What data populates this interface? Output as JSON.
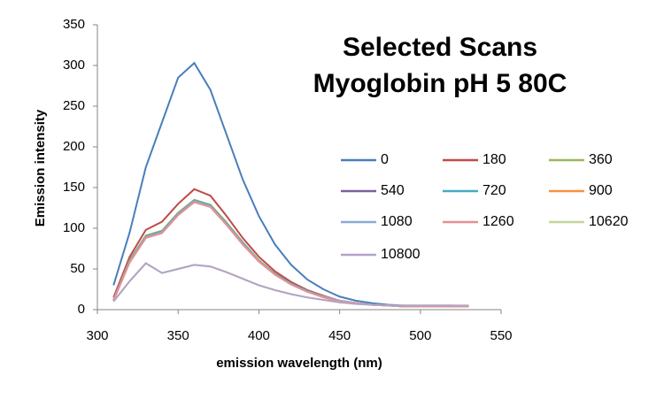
{
  "chart_data": {
    "type": "line",
    "title": [
      "Selected Scans",
      "Myoglobin pH 5 80C"
    ],
    "x_label": "emission wavelength (nm)",
    "y_label": "Emission intensity",
    "x": [
      310,
      320,
      330,
      340,
      350,
      360,
      370,
      380,
      390,
      400,
      410,
      420,
      430,
      440,
      450,
      460,
      470,
      480,
      490,
      500,
      510,
      520,
      530
    ],
    "xlim": [
      300,
      550
    ],
    "xticks": [
      300,
      350,
      400,
      450,
      500,
      550
    ],
    "ylim": [
      0,
      350
    ],
    "yticks": [
      0,
      50,
      100,
      150,
      200,
      250,
      300,
      350
    ],
    "grid": false,
    "series": [
      {
        "name": "0",
        "color": "#4a7ebb",
        "values": [
          30,
          95,
          175,
          230,
          285,
          303,
          270,
          215,
          160,
          115,
          80,
          55,
          37,
          25,
          16,
          11,
          8,
          6,
          5,
          5,
          5,
          5,
          4
        ]
      },
      {
        "name": "180",
        "color": "#be4b48",
        "values": [
          15,
          65,
          98,
          108,
          130,
          148,
          140,
          115,
          88,
          65,
          47,
          34,
          24,
          17,
          11,
          8,
          6,
          5,
          4,
          4,
          4,
          4,
          4
        ]
      },
      {
        "name": "360",
        "color": "#98b954",
        "values": [
          12,
          61,
          91,
          97,
          119,
          135,
          129,
          107,
          83,
          61,
          44,
          32,
          23,
          16,
          11,
          8,
          6,
          5,
          4,
          4,
          4,
          4,
          4
        ]
      },
      {
        "name": "540",
        "color": "#7d60a0",
        "values": [
          12,
          60,
          90,
          96,
          118,
          134,
          128,
          106,
          82,
          60,
          44,
          32,
          23,
          16,
          11,
          8,
          6,
          5,
          4,
          4,
          4,
          4,
          4
        ]
      },
      {
        "name": "720",
        "color": "#46aac5",
        "values": [
          12,
          60,
          90,
          96,
          118,
          134,
          128,
          106,
          82,
          60,
          44,
          32,
          23,
          16,
          11,
          8,
          6,
          5,
          4,
          4,
          4,
          4,
          4
        ]
      },
      {
        "name": "900",
        "color": "#f69240",
        "values": [
          12,
          59,
          89,
          95,
          117,
          133,
          127,
          105,
          81,
          60,
          43,
          31,
          22,
          16,
          11,
          8,
          6,
          5,
          4,
          4,
          4,
          4,
          4
        ]
      },
      {
        "name": "1080",
        "color": "#8ea9d6",
        "values": [
          12,
          59,
          89,
          95,
          117,
          133,
          127,
          105,
          81,
          60,
          43,
          31,
          22,
          16,
          11,
          8,
          6,
          5,
          4,
          4,
          4,
          4,
          4
        ]
      },
      {
        "name": "1260",
        "color": "#e6908f",
        "values": [
          11,
          58,
          88,
          94,
          116,
          132,
          126,
          104,
          80,
          59,
          43,
          31,
          22,
          15,
          10,
          8,
          6,
          5,
          4,
          4,
          4,
          4,
          4
        ]
      },
      {
        "name": "10620",
        "color": "#c3d69b",
        "values": [
          10,
          35,
          57,
          45,
          50,
          55,
          53,
          46,
          38,
          30,
          24,
          19,
          15,
          12,
          9,
          7,
          6,
          5,
          5,
          5,
          5,
          5,
          5
        ]
      },
      {
        "name": "10800",
        "color": "#b3a2c7",
        "values": [
          10,
          35,
          57,
          45,
          50,
          55,
          53,
          46,
          38,
          30,
          24,
          19,
          15,
          12,
          9,
          7,
          6,
          5,
          5,
          5,
          5,
          5,
          5
        ]
      }
    ]
  }
}
